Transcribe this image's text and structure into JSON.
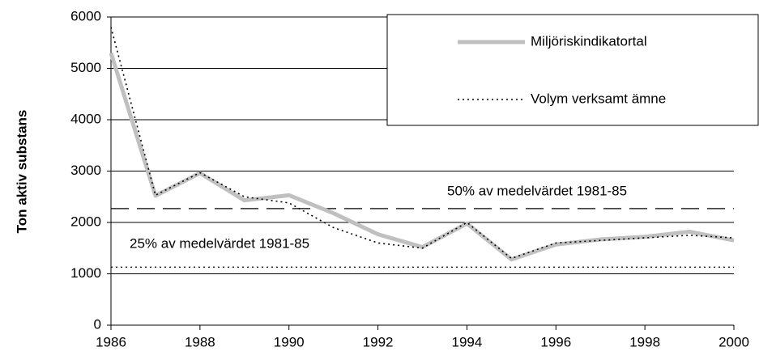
{
  "chart_data": {
    "type": "line",
    "ylabel": "Ton aktiv substans",
    "x": [
      1986,
      1987,
      1988,
      1989,
      1990,
      1991,
      1992,
      1993,
      1994,
      1995,
      1996,
      1997,
      1998,
      1999,
      2000
    ],
    "series": [
      {
        "name": "Miljöriskindikatortal",
        "color": "#c0c0c0",
        "style": "solid",
        "values": [
          5300,
          2520,
          2960,
          2430,
          2530,
          2180,
          1770,
          1520,
          1980,
          1280,
          1570,
          1670,
          1720,
          1820,
          1650
        ]
      },
      {
        "name": "Volym verksamt ämne",
        "color": "#000000",
        "style": "dotted",
        "values": [
          5800,
          2530,
          2970,
          2500,
          2380,
          1900,
          1600,
          1500,
          2000,
          1300,
          1600,
          1650,
          1700,
          1750,
          1700
        ]
      }
    ],
    "reference_lines": [
      {
        "label": "50% av medelvärdet 1981-85",
        "value": 2270,
        "style": "dashed"
      },
      {
        "label": "25% av medelvärdet 1981-85",
        "value": 1130,
        "style": "dotted"
      }
    ],
    "xlim": [
      1986,
      2000
    ],
    "xticks": [
      1986,
      1988,
      1990,
      1992,
      1994,
      1996,
      1998,
      2000
    ],
    "ylim": [
      0,
      6000
    ],
    "yticks": [
      0,
      1000,
      2000,
      3000,
      4000,
      5000,
      6000
    ],
    "grid": true,
    "legend": "upper right"
  }
}
